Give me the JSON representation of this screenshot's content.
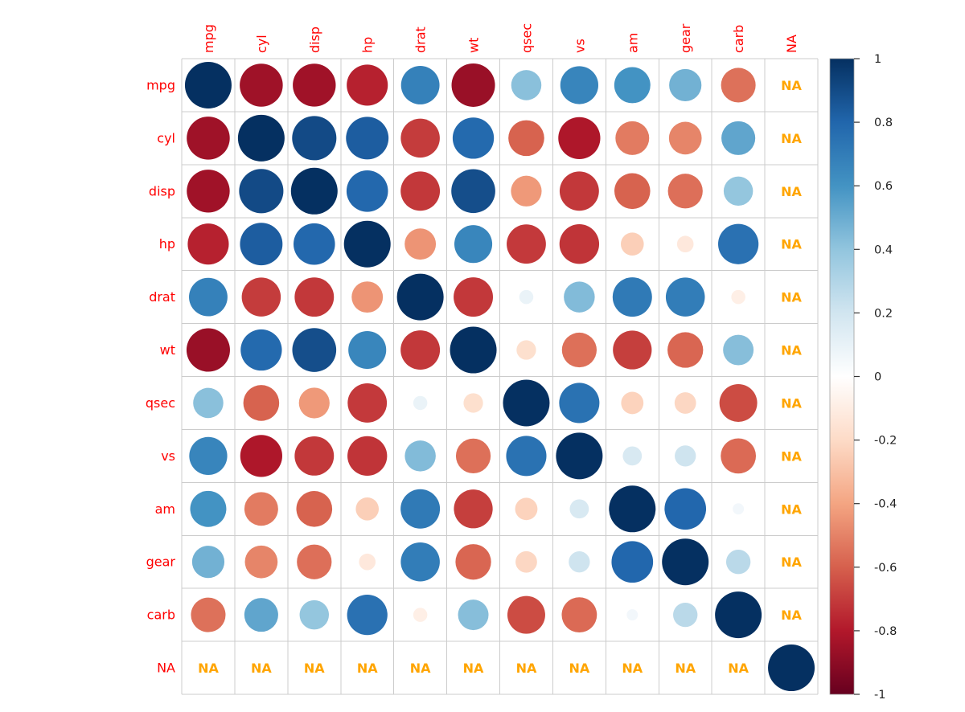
{
  "chart_data": {
    "type": "heatmap",
    "subtype": "correlation-circle-matrix",
    "title": "",
    "variables": [
      "mpg",
      "cyl",
      "disp",
      "hp",
      "drat",
      "wt",
      "qsec",
      "vs",
      "am",
      "gear",
      "carb",
      "NA"
    ],
    "na_cell_text": "NA",
    "matrix": [
      [
        1.0,
        -0.852,
        -0.848,
        -0.776,
        0.681,
        -0.868,
        0.419,
        0.664,
        0.6,
        0.48,
        -0.551,
        null
      ],
      [
        -0.852,
        1.0,
        0.902,
        0.832,
        -0.7,
        0.782,
        -0.591,
        -0.811,
        -0.523,
        -0.493,
        0.527,
        null
      ],
      [
        -0.848,
        0.902,
        1.0,
        0.791,
        -0.71,
        0.888,
        -0.434,
        -0.71,
        -0.591,
        -0.556,
        0.395,
        null
      ],
      [
        -0.776,
        0.832,
        0.791,
        1.0,
        -0.449,
        0.659,
        -0.708,
        -0.723,
        -0.243,
        -0.126,
        0.75,
        null
      ],
      [
        0.681,
        -0.7,
        -0.71,
        -0.449,
        1.0,
        -0.712,
        0.091,
        0.44,
        0.713,
        0.7,
        -0.091,
        null
      ],
      [
        -0.868,
        0.782,
        0.888,
        0.659,
        -0.712,
        1.0,
        -0.175,
        -0.555,
        -0.692,
        -0.583,
        0.428,
        null
      ],
      [
        0.419,
        -0.591,
        -0.434,
        -0.708,
        0.091,
        -0.175,
        1.0,
        0.745,
        -0.23,
        -0.213,
        -0.656,
        null
      ],
      [
        0.664,
        -0.811,
        -0.71,
        -0.723,
        0.44,
        -0.555,
        0.745,
        1.0,
        0.168,
        0.206,
        -0.57,
        null
      ],
      [
        0.6,
        -0.523,
        -0.591,
        -0.243,
        0.713,
        -0.692,
        -0.23,
        0.168,
        1.0,
        0.794,
        0.058,
        null
      ],
      [
        0.48,
        -0.493,
        -0.556,
        -0.126,
        0.7,
        -0.583,
        -0.213,
        0.206,
        0.794,
        1.0,
        0.274,
        null
      ],
      [
        -0.551,
        0.527,
        0.395,
        0.75,
        -0.091,
        0.428,
        -0.656,
        -0.57,
        0.058,
        0.274,
        1.0,
        null
      ],
      [
        null,
        null,
        null,
        null,
        null,
        null,
        null,
        null,
        null,
        null,
        null,
        1.0
      ]
    ],
    "value_range": [
      -1,
      1
    ],
    "grid_on": true,
    "legend_position": "right",
    "colorbar": {
      "tick_values": [
        1,
        0.8,
        0.6,
        0.4,
        0.2,
        0,
        -0.2,
        -0.4,
        -0.6,
        -0.8,
        -1
      ],
      "tick_labels": [
        "1",
        "0.8",
        "0.6",
        "0.4",
        "0.2",
        "0",
        "-0.2",
        "-0.4",
        "-0.6",
        "-0.8",
        "-1"
      ]
    },
    "palette_pos_to_neg": [
      "#053061",
      "#2166AC",
      "#4393C3",
      "#92C5DE",
      "#D1E5F0",
      "#FFFFFF",
      "#FDDBC7",
      "#F4A582",
      "#D6604D",
      "#B2182B",
      "#67001F"
    ],
    "colors": {
      "variable_label": "#FF0000",
      "na_text": "#FFA500",
      "grid_line": "#CCCCCC",
      "colorbar_border": "#999999",
      "tick_mark": "#333333",
      "tick_label": "#222222",
      "background": "#FFFFFF"
    }
  }
}
